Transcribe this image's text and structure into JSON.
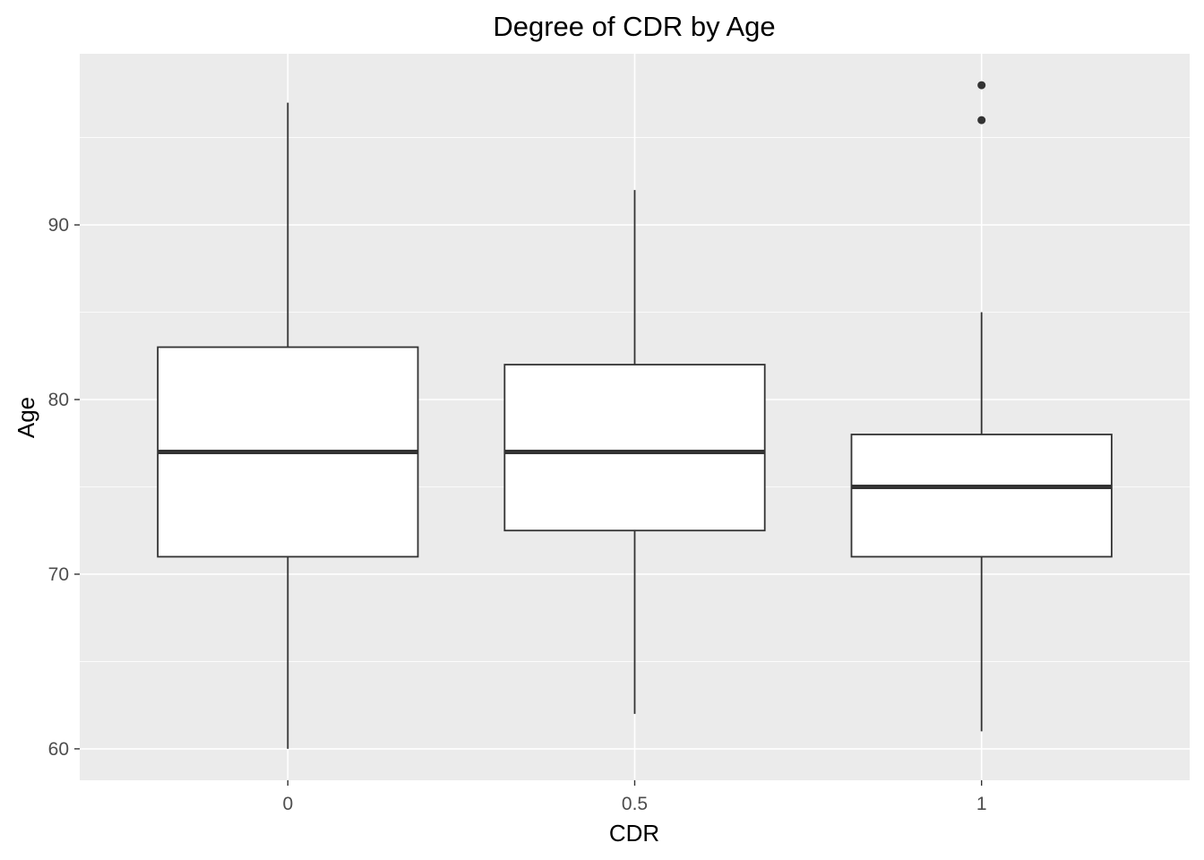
{
  "chart_data": {
    "type": "boxplot",
    "title": "Degree of CDR by Age",
    "xlabel": "CDR",
    "ylabel": "Age",
    "categories": [
      "0",
      "0.5",
      "1"
    ],
    "ylim": [
      58.2,
      99.8
    ],
    "y_ticks": [
      60,
      70,
      80,
      90
    ],
    "y_tick_labels": [
      "60",
      "70",
      "80",
      "90"
    ],
    "grid": true,
    "legend": "none",
    "colors": {
      "panel_background": "#EBEBEB",
      "grid": "#FFFFFF",
      "box_fill": "#FFFFFF",
      "box_line": "#333333",
      "tick_label": "#4D4D4D"
    },
    "boxes": [
      {
        "category": "0",
        "whisker_low": 60,
        "q1": 71,
        "median": 77,
        "q3": 83,
        "whisker_high": 97,
        "outliers": []
      },
      {
        "category": "0.5",
        "whisker_low": 62,
        "q1": 72.5,
        "median": 77,
        "q3": 82,
        "whisker_high": 92,
        "outliers": []
      },
      {
        "category": "1",
        "whisker_low": 61,
        "q1": 71,
        "median": 75,
        "q3": 78,
        "whisker_high": 85,
        "outliers": [
          96,
          98
        ]
      }
    ]
  }
}
